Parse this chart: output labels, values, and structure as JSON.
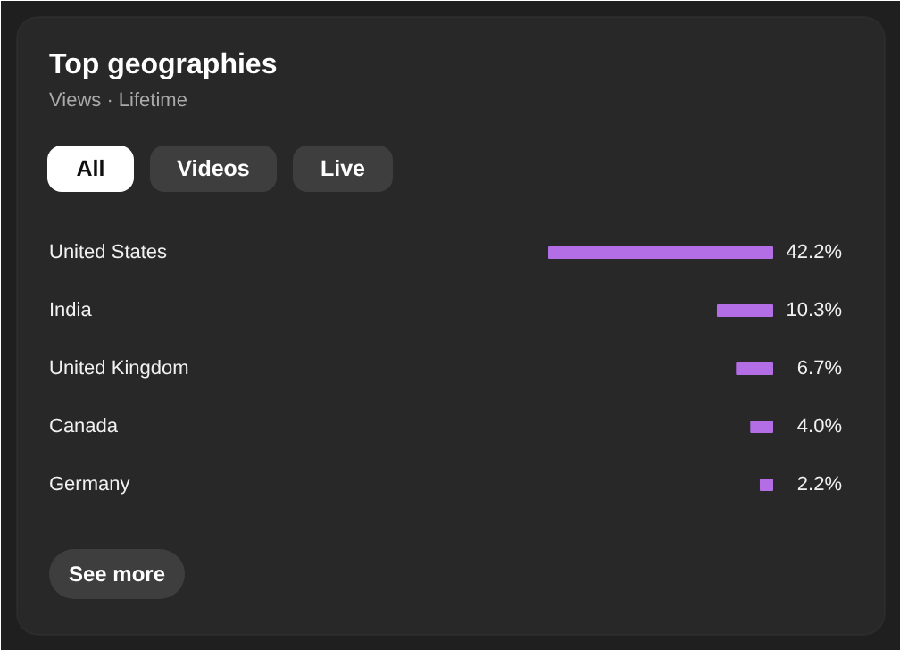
{
  "chart_data": {
    "type": "bar",
    "orientation": "horizontal",
    "title": "Top geographies",
    "subtitle": "Views · Lifetime",
    "categories": [
      "United States",
      "India",
      "United Kingdom",
      "Canada",
      "Germany"
    ],
    "values": [
      42.2,
      10.3,
      6.7,
      4.0,
      2.2
    ],
    "value_labels": [
      "42.2%",
      "10.3%",
      "6.7%",
      "4.0%",
      "2.2%"
    ],
    "color": "#b36ee6",
    "tick_labels": "y",
    "annotations": [
      "All",
      "Videos",
      "Live",
      "See more"
    ]
  }
}
